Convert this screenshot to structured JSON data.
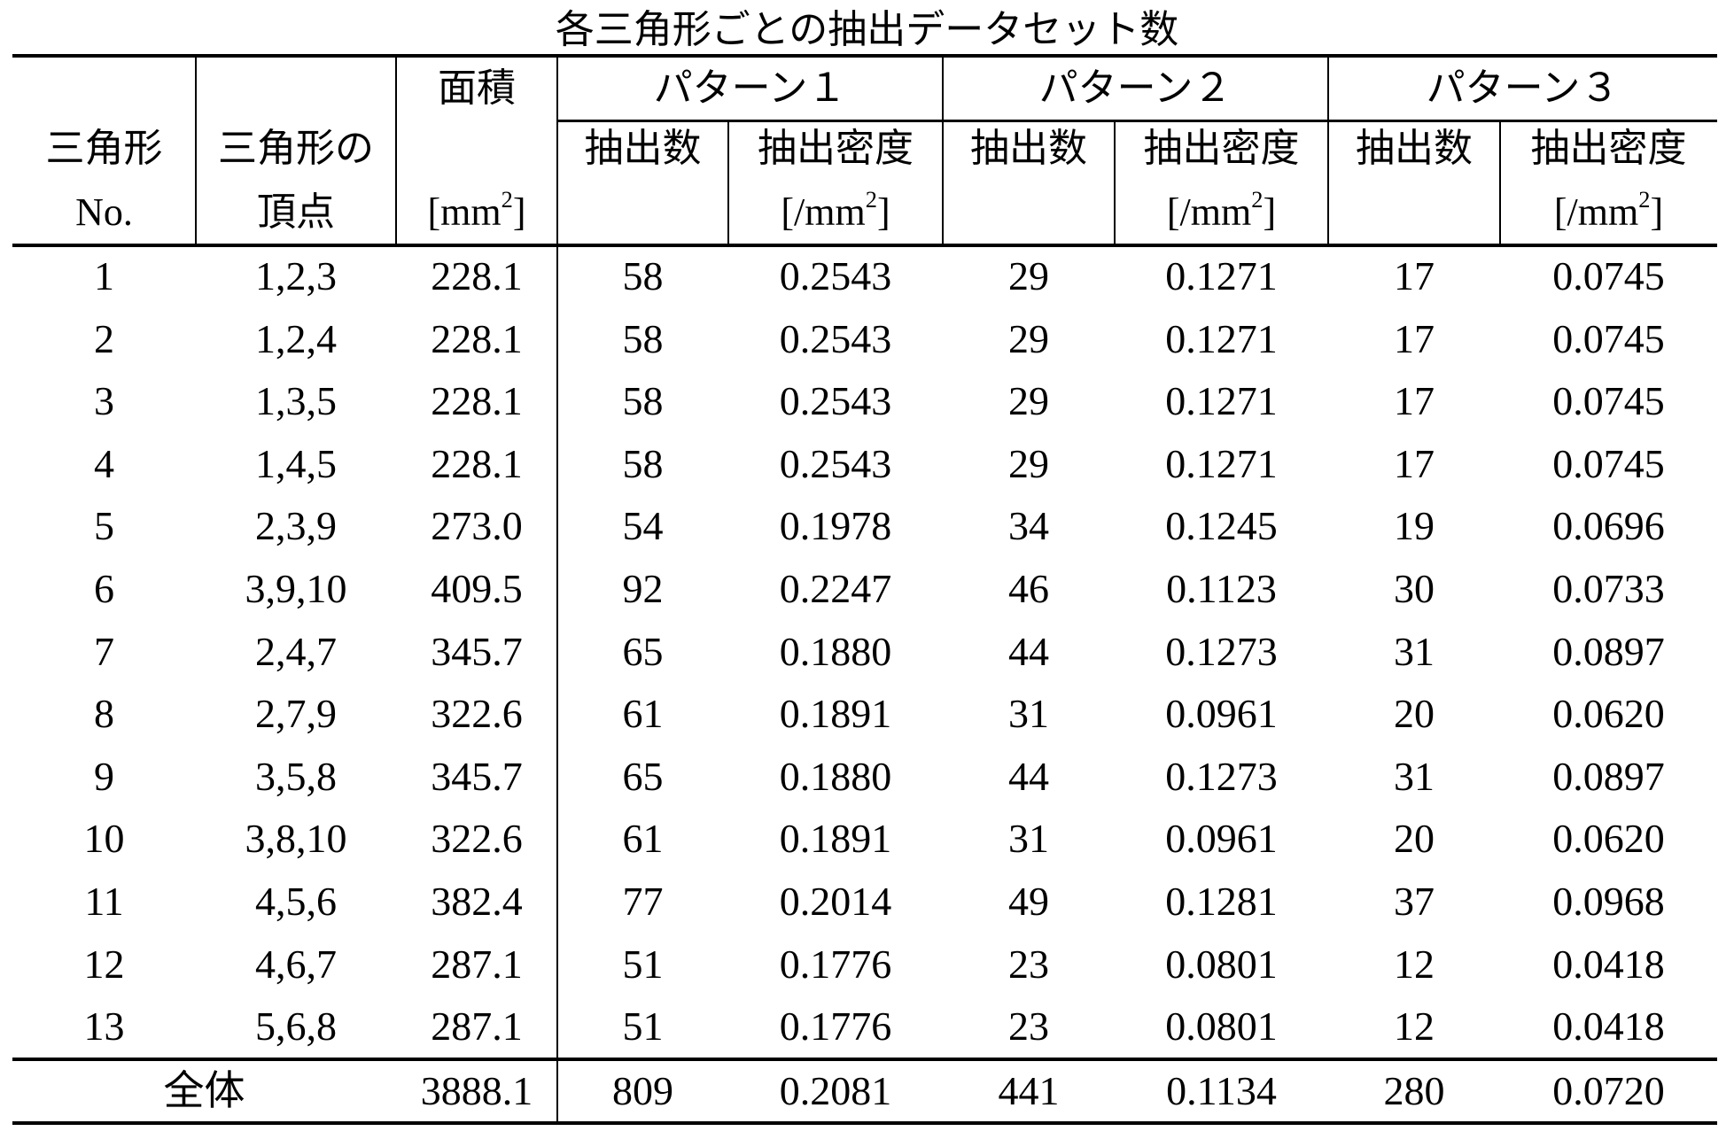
{
  "title": "各三角形ごとの抽出データセット数",
  "header": {
    "triangle_no_line1": "三角形",
    "triangle_no_line2": "No.",
    "vertices_line1": "三角形の",
    "vertices_line2": "頂点",
    "area_line1": "面積",
    "area_unit_prefix": "[mm",
    "area_unit_exp": "2",
    "area_unit_suffix": "]",
    "patterns": [
      {
        "label": "パターン１"
      },
      {
        "label": "パターン２"
      },
      {
        "label": "パターン３"
      }
    ],
    "count_label": "抽出数",
    "density_label": "抽出密度",
    "density_unit_prefix": "[/mm",
    "density_unit_exp": "2",
    "density_unit_suffix": "]"
  },
  "rows": [
    {
      "no": "1",
      "vertices": "1,2,3",
      "area": "228.1",
      "p1_count": "58",
      "p1_density": "0.2543",
      "p2_count": "29",
      "p2_density": "0.1271",
      "p3_count": "17",
      "p3_density": "0.0745"
    },
    {
      "no": "2",
      "vertices": "1,2,4",
      "area": "228.1",
      "p1_count": "58",
      "p1_density": "0.2543",
      "p2_count": "29",
      "p2_density": "0.1271",
      "p3_count": "17",
      "p3_density": "0.0745"
    },
    {
      "no": "3",
      "vertices": "1,3,5",
      "area": "228.1",
      "p1_count": "58",
      "p1_density": "0.2543",
      "p2_count": "29",
      "p2_density": "0.1271",
      "p3_count": "17",
      "p3_density": "0.0745"
    },
    {
      "no": "4",
      "vertices": "1,4,5",
      "area": "228.1",
      "p1_count": "58",
      "p1_density": "0.2543",
      "p2_count": "29",
      "p2_density": "0.1271",
      "p3_count": "17",
      "p3_density": "0.0745"
    },
    {
      "no": "5",
      "vertices": "2,3,9",
      "area": "273.0",
      "p1_count": "54",
      "p1_density": "0.1978",
      "p2_count": "34",
      "p2_density": "0.1245",
      "p3_count": "19",
      "p3_density": "0.0696"
    },
    {
      "no": "6",
      "vertices": "3,9,10",
      "area": "409.5",
      "p1_count": "92",
      "p1_density": "0.2247",
      "p2_count": "46",
      "p2_density": "0.1123",
      "p3_count": "30",
      "p3_density": "0.0733"
    },
    {
      "no": "7",
      "vertices": "2,4,7",
      "area": "345.7",
      "p1_count": "65",
      "p1_density": "0.1880",
      "p2_count": "44",
      "p2_density": "0.1273",
      "p3_count": "31",
      "p3_density": "0.0897"
    },
    {
      "no": "8",
      "vertices": "2,7,9",
      "area": "322.6",
      "p1_count": "61",
      "p1_density": "0.1891",
      "p2_count": "31",
      "p2_density": "0.0961",
      "p3_count": "20",
      "p3_density": "0.0620"
    },
    {
      "no": "9",
      "vertices": "3,5,8",
      "area": "345.7",
      "p1_count": "65",
      "p1_density": "0.1880",
      "p2_count": "44",
      "p2_density": "0.1273",
      "p3_count": "31",
      "p3_density": "0.0897"
    },
    {
      "no": "10",
      "vertices": "3,8,10",
      "area": "322.6",
      "p1_count": "61",
      "p1_density": "0.1891",
      "p2_count": "31",
      "p2_density": "0.0961",
      "p3_count": "20",
      "p3_density": "0.0620"
    },
    {
      "no": "11",
      "vertices": "4,5,6",
      "area": "382.4",
      "p1_count": "77",
      "p1_density": "0.2014",
      "p2_count": "49",
      "p2_density": "0.1281",
      "p3_count": "37",
      "p3_density": "0.0968"
    },
    {
      "no": "12",
      "vertices": "4,6,7",
      "area": "287.1",
      "p1_count": "51",
      "p1_density": "0.1776",
      "p2_count": "23",
      "p2_density": "0.0801",
      "p3_count": "12",
      "p3_density": "0.0418"
    },
    {
      "no": "13",
      "vertices": "5,6,8",
      "area": "287.1",
      "p1_count": "51",
      "p1_density": "0.1776",
      "p2_count": "23",
      "p2_density": "0.0801",
      "p3_count": "12",
      "p3_density": "0.0418"
    }
  ],
  "total": {
    "label": "全体",
    "area": "3888.1",
    "p1_count": "809",
    "p1_density": "0.2081",
    "p2_count": "441",
    "p2_density": "0.1134",
    "p3_count": "280",
    "p3_density": "0.0720"
  }
}
